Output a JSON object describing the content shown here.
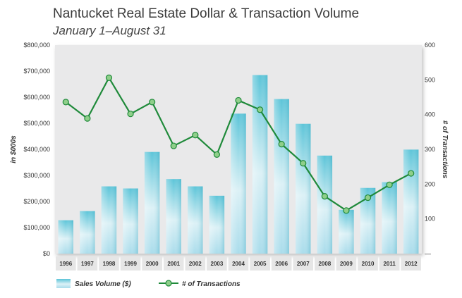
{
  "chart_data": {
    "type": "bar",
    "title": "Nantucket Real Estate Dollar & Transaction Volume",
    "subtitle": "January 1–August 31",
    "categories": [
      "1996",
      "1997",
      "1998",
      "1999",
      "2000",
      "2001",
      "2002",
      "2003",
      "2004",
      "2005",
      "2006",
      "2007",
      "2008",
      "2009",
      "2010",
      "2011",
      "2012"
    ],
    "series": [
      {
        "name": "Sales Volume ($)",
        "type": "bar",
        "axis": "left",
        "values": [
          128000,
          163000,
          258000,
          250000,
          390000,
          286000,
          258000,
          222000,
          537000,
          685000,
          593000,
          498000,
          376000,
          168000,
          252000,
          274000,
          399000
        ]
      },
      {
        "name": "# of Transactions",
        "type": "line",
        "axis": "right",
        "values": [
          436,
          389,
          506,
          402,
          436,
          310,
          341,
          285,
          441,
          414,
          315,
          260,
          165,
          124,
          161,
          198,
          231
        ]
      }
    ],
    "left_axis": {
      "label": "in $000s",
      "min": 0,
      "max": 800000,
      "ticks": [
        "$0",
        "$100,000",
        "$200,000",
        "$300,000",
        "$400,000",
        "$500,000",
        "$600,000",
        "$700,000",
        "$800,000"
      ]
    },
    "right_axis": {
      "label": "# of Transactions",
      "min": 0,
      "max": 600,
      "ticks": [
        "—",
        "100",
        "200",
        "300",
        "400",
        "500",
        "600"
      ]
    },
    "grid": false,
    "legend_position": "bottom",
    "colors": {
      "bar_top": "#5bc4d8",
      "bar_mid": "#dcf1f6",
      "line": "#1f8a3a",
      "marker": "#8fcf8a",
      "plot_bg": "#e9e9ea"
    }
  }
}
